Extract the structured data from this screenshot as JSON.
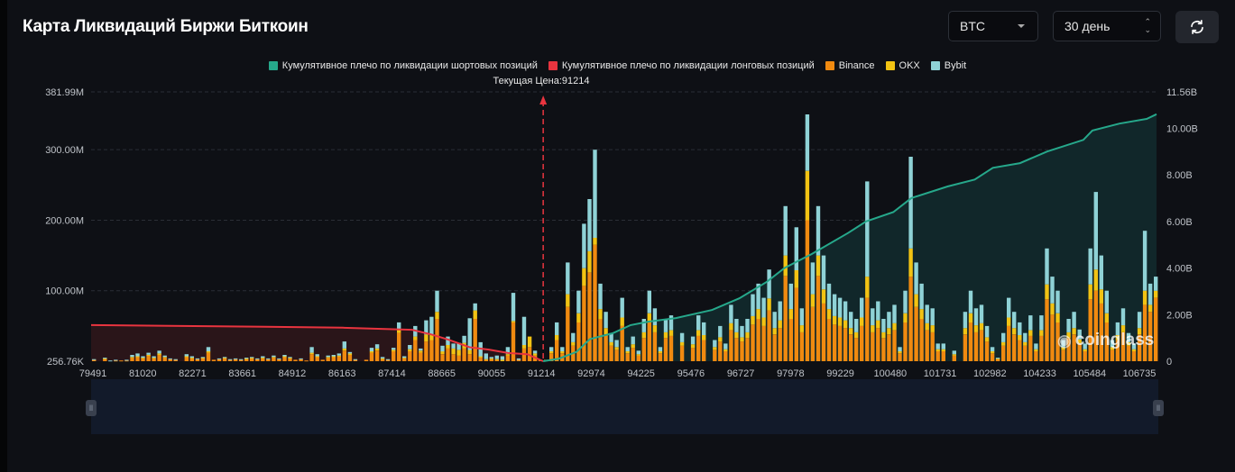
{
  "header": {
    "title": "Карта Ликвидаций Биржи Биткоин",
    "coin_select": "BTC",
    "period_select": "30 день",
    "refresh_icon": "refresh-icon"
  },
  "watermark": "coinglass",
  "chart_data": {
    "type": "bar",
    "title": "Карта Ликвидаций Биржи Биткоин",
    "legend": [
      {
        "name": "Кумулятивное плечо по ликвидации шортовых позиций",
        "color": "#26a88b"
      },
      {
        "name": "Кумулятивное плечо по ликвидации лонговых позиций",
        "color": "#e8343f"
      },
      {
        "name": "Binance",
        "color": "#f08a10"
      },
      {
        "name": "OKX",
        "color": "#f2c313"
      },
      {
        "name": "Bybit",
        "color": "#8fd2d6"
      }
    ],
    "legend_position": "top-center",
    "current_price_label": "Текущая Цена:91214",
    "current_price": 91214,
    "x_ticks": [
      "79491",
      "81020",
      "82271",
      "83661",
      "84912",
      "86163",
      "87414",
      "88665",
      "90055",
      "91214",
      "92974",
      "94225",
      "95476",
      "96727",
      "97978",
      "99229",
      "100480",
      "101731",
      "102982",
      "104233",
      "105484",
      "106735"
    ],
    "x_range": [
      79373,
      107233
    ],
    "bar_price_start": 79373,
    "bar_price_step": 141.5,
    "y_left": {
      "unit": "USD",
      "range": [
        0,
        381.99
      ],
      "ticks": [
        {
          "label": "381.99M",
          "value": 381.99
        },
        {
          "label": "300.00M",
          "value": 300
        },
        {
          "label": "200.00M",
          "value": 200
        },
        {
          "label": "100.00M",
          "value": 100
        },
        {
          "label": "256.76K",
          "value": 0.25676
        }
      ]
    },
    "y_right": {
      "unit": "USD",
      "range": [
        0,
        11.56
      ],
      "ticks": [
        {
          "label": "11.56B",
          "value": 11.56
        },
        {
          "label": "10.00B",
          "value": 10
        },
        {
          "label": "8.00B",
          "value": 8
        },
        {
          "label": "6.00B",
          "value": 6
        },
        {
          "label": "4.00B",
          "value": 4
        },
        {
          "label": "2.00B",
          "value": 2
        },
        {
          "label": "0",
          "value": 0
        }
      ]
    },
    "grid": true,
    "series": [
      {
        "name": "Binance",
        "unit": "M",
        "values": [
          2,
          0,
          3,
          0,
          1,
          1,
          1,
          5,
          6,
          4,
          8,
          4,
          9,
          5,
          3,
          2,
          0,
          6,
          4,
          3,
          4,
          12,
          2,
          3,
          4,
          2,
          3,
          2,
          3,
          4,
          3,
          4,
          3,
          5,
          3,
          6,
          4,
          2,
          3,
          1,
          10,
          6,
          2,
          5,
          6,
          7,
          15,
          9,
          2,
          0,
          2,
          12,
          15,
          3,
          2,
          14,
          40,
          4,
          14,
          30,
          12,
          28,
          30,
          60,
          10,
          18,
          10,
          8,
          18,
          10,
          60,
          5,
          2,
          3,
          2,
          0,
          8,
          55,
          2,
          18,
          20,
          8,
          2,
          0,
          11,
          30,
          11,
          77,
          22,
          55,
          107,
          126,
          165,
          60,
          38,
          22,
          16,
          50,
          11,
          19,
          8,
          33,
          55,
          41,
          11,
          33,
          36,
          0,
          22,
          0,
          19,
          36,
          30,
          0,
          16,
          28,
          14,
          44,
          33,
          28,
          33,
          52,
          60,
          50,
          72,
          38,
          47,
          121,
          60,
          104,
          41,
          200,
          77,
          121,
          82,
          60,
          52,
          50,
          47,
          38,
          33,
          50,
          90,
          41,
          47,
          33,
          38,
          44,
          11,
          55,
          120,
          77,
          60,
          44,
          41,
          14,
          14,
          0,
          8,
          0,
          38,
          55,
          41,
          44,
          28,
          11,
          3,
          22,
          50,
          38,
          30,
          22,
          36,
          14,
          36,
          88,
          66,
          55,
          16,
          33,
          38,
          25,
          14,
          88,
          100,
          82,
          55,
          16,
          30,
          41,
          22,
          14,
          38,
          80,
          70,
          90
        ]
      },
      {
        "name": "OKX",
        "unit": "M",
        "values": [
          0,
          0,
          1,
          0,
          0,
          0,
          0,
          1,
          1,
          1,
          1,
          1,
          2,
          1,
          0,
          0,
          0,
          1,
          1,
          0,
          1,
          2,
          0,
          0,
          1,
          0,
          0,
          0,
          1,
          1,
          0,
          1,
          0,
          1,
          0,
          1,
          1,
          0,
          0,
          0,
          2,
          1,
          0,
          1,
          1,
          1,
          3,
          2,
          0,
          0,
          0,
          2,
          3,
          1,
          0,
          2,
          5,
          1,
          3,
          5,
          3,
          10,
          8,
          10,
          4,
          5,
          8,
          8,
          8,
          6,
          12,
          2,
          1,
          1,
          1,
          2,
          2,
          2,
          0,
          5,
          15,
          3,
          0,
          2,
          3,
          7,
          3,
          18,
          5,
          13,
          25,
          30,
          10,
          14,
          9,
          5,
          4,
          12,
          3,
          5,
          2,
          8,
          13,
          10,
          3,
          8,
          8,
          0,
          5,
          0,
          5,
          8,
          7,
          0,
          4,
          6,
          3,
          10,
          8,
          6,
          8,
          12,
          14,
          12,
          17,
          9,
          11,
          29,
          14,
          25,
          10,
          70,
          18,
          29,
          20,
          14,
          12,
          12,
          11,
          9,
          8,
          12,
          30,
          10,
          11,
          8,
          9,
          10,
          3,
          13,
          40,
          18,
          14,
          10,
          10,
          3,
          3,
          0,
          2,
          0,
          9,
          13,
          10,
          10,
          6,
          3,
          1,
          5,
          12,
          9,
          7,
          5,
          8,
          3,
          8,
          21,
          16,
          13,
          4,
          8,
          9,
          6,
          3,
          21,
          30,
          20,
          13,
          4,
          7,
          10,
          5,
          3,
          9,
          20,
          10,
          10
        ]
      },
      {
        "name": "Bybit",
        "unit": "M",
        "values": [
          1,
          0,
          1,
          1,
          1,
          0,
          1,
          3,
          4,
          2,
          3,
          2,
          4,
          2,
          1,
          1,
          0,
          3,
          2,
          1,
          1,
          6,
          0,
          1,
          1,
          1,
          1,
          1,
          1,
          1,
          1,
          2,
          1,
          2,
          1,
          2,
          1,
          0,
          1,
          0,
          8,
          3,
          0,
          2,
          2,
          3,
          10,
          2,
          1,
          0,
          0,
          5,
          6,
          2,
          1,
          3,
          10,
          2,
          6,
          15,
          3,
          20,
          25,
          30,
          8,
          12,
          7,
          10,
          10,
          45,
          10,
          20,
          8,
          2,
          5,
          5,
          10,
          40,
          2,
          40,
          0,
          4,
          0,
          0,
          6,
          18,
          6,
          45,
          13,
          32,
          63,
          74,
          125,
          36,
          23,
          13,
          10,
          28,
          6,
          11,
          5,
          19,
          32,
          24,
          6,
          19,
          21,
          0,
          13,
          0,
          11,
          21,
          18,
          0,
          10,
          16,
          8,
          26,
          19,
          16,
          19,
          31,
          36,
          28,
          41,
          23,
          27,
          70,
          36,
          61,
          24,
          80,
          45,
          70,
          48,
          36,
          31,
          28,
          27,
          23,
          19,
          28,
          135,
          24,
          27,
          19,
          23,
          26,
          6,
          32,
          130,
          45,
          36,
          26,
          24,
          8,
          8,
          0,
          5,
          0,
          23,
          32,
          24,
          26,
          16,
          6,
          1,
          13,
          28,
          23,
          18,
          13,
          21,
          8,
          21,
          51,
          38,
          32,
          10,
          19,
          23,
          14,
          8,
          51,
          110,
          48,
          32,
          10,
          18,
          24,
          13,
          8,
          23,
          85,
          30,
          20
        ]
      }
    ],
    "cumulative_long_B": [
      [
        79373,
        1.55
      ],
      [
        81500,
        1.52
      ],
      [
        84000,
        1.48
      ],
      [
        86000,
        1.44
      ],
      [
        87800,
        1.35
      ],
      [
        88300,
        1.15
      ],
      [
        88700,
        0.95
      ],
      [
        89300,
        0.6
      ],
      [
        89800,
        0.5
      ],
      [
        90300,
        0.35
      ],
      [
        90800,
        0.3
      ],
      [
        91214,
        0
      ]
    ],
    "cumulative_short_B": [
      [
        91214,
        0
      ],
      [
        91606,
        0.1
      ],
      [
        92077,
        0.4
      ],
      [
        92431,
        0.95
      ],
      [
        93020,
        1.2
      ],
      [
        93492,
        1.55
      ],
      [
        93963,
        1.7
      ],
      [
        94670,
        1.85
      ],
      [
        95613,
        2.2
      ],
      [
        96320,
        2.7
      ],
      [
        97027,
        3.4
      ],
      [
        97498,
        4.0
      ],
      [
        98205,
        4.6
      ],
      [
        99148,
        5.5
      ],
      [
        99620,
        6.0
      ],
      [
        100327,
        6.4
      ],
      [
        100798,
        7.0
      ],
      [
        101741,
        7.5
      ],
      [
        102448,
        7.8
      ],
      [
        102920,
        8.3
      ],
      [
        103627,
        8.5
      ],
      [
        104334,
        9.0
      ],
      [
        105277,
        9.5
      ],
      [
        105512,
        9.9
      ],
      [
        106219,
        10.2
      ],
      [
        106926,
        10.4
      ],
      [
        107233,
        10.6
      ]
    ]
  }
}
